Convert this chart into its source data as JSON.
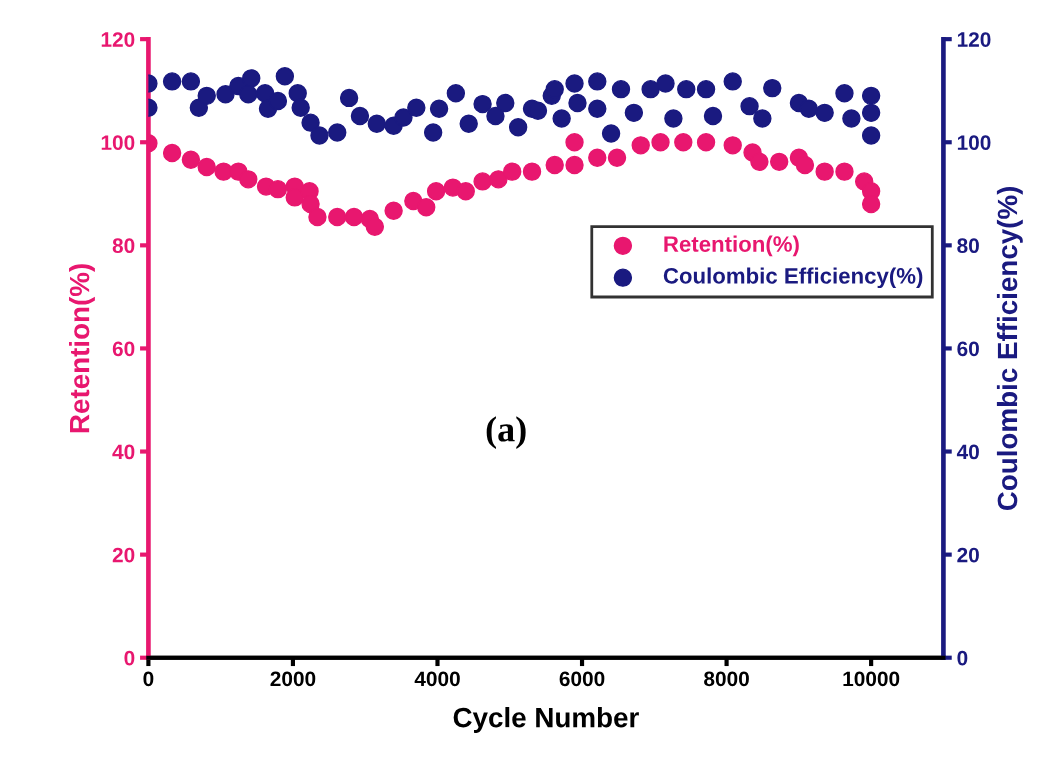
{
  "chart_data": {
    "type": "scatter",
    "xlabel": "Cycle Number",
    "ylabel": "Retention(%)",
    "y2label": "Coulombic Efficiency(%)",
    "annotations": [
      "(a)"
    ],
    "xlim": [
      0,
      11000
    ],
    "xticks": [
      0,
      2000,
      4000,
      6000,
      8000,
      10000
    ],
    "ylim": [
      0,
      120
    ],
    "yticks": [
      0,
      20,
      40,
      60,
      80,
      100,
      120
    ],
    "y2lim": [
      0,
      120
    ],
    "y2ticks": [
      0,
      20,
      40,
      60,
      80,
      100,
      120
    ],
    "grid": false,
    "legend": "center right",
    "marker": "circle",
    "series": [
      {
        "name": "Retention(%)",
        "color": "#e8176f",
        "x": [
          0,
          328,
          588,
          807,
          1040,
          1245,
          1382,
          1628,
          1792,
          2025,
          2025,
          2230,
          2244,
          2339,
          2613,
          2845,
          3064,
          3133,
          3393,
          3666,
          3844,
          3981,
          4213,
          4391,
          4624,
          4843,
          5034,
          5308,
          5622,
          5896,
          5896,
          6211,
          6484,
          6812,
          7086,
          7401,
          7716,
          8085,
          8359,
          8454,
          8728,
          9001,
          9084,
          9357,
          9631,
          9904,
          10000,
          10000
        ],
        "values": [
          99.8,
          97.9,
          96.6,
          95.2,
          94.3,
          94.3,
          92.8,
          91.4,
          90.9,
          91.4,
          89.3,
          90.5,
          88,
          85.5,
          85.5,
          85.5,
          85.1,
          83.6,
          86.7,
          88.6,
          87.4,
          90.5,
          91.2,
          90.5,
          92.4,
          92.8,
          94.3,
          94.3,
          95.6,
          100,
          95.6,
          97,
          97,
          99.4,
          100,
          100,
          100,
          99.4,
          98,
          96.2,
          96.2,
          97,
          95.6,
          94.3,
          94.3,
          92.4,
          90.5,
          88
        ]
      },
      {
        "name": "Coulombic Efficiency(%)",
        "color": "#1a1a80",
        "axis": "y2",
        "x": [
          0,
          0,
          328,
          588,
          698,
          807,
          1067,
          1245,
          1423,
          1382,
          1614,
          1655,
          1888,
          1792,
          2066,
          2107,
          2244,
          2367,
          2613,
          2777,
          2927,
          3160,
          3393,
          3529,
          3707,
          3940,
          4022,
          4254,
          4432,
          4624,
          4802,
          4938,
          5116,
          5308,
          5581,
          5390,
          5622,
          5718,
          5896,
          5937,
          6211,
          6211,
          6402,
          6539,
          6717,
          6949,
          7155,
          7264,
          7442,
          7716,
          7812,
          8085,
          8318,
          8495,
          8632,
          9001,
          9138,
          9357,
          9631,
          9727,
          10000,
          10000,
          10000
        ],
        "values": [
          111.4,
          106.7,
          111.8,
          111.8,
          106.7,
          109,
          109.3,
          110.9,
          112.4,
          109.3,
          109.5,
          106.5,
          112.8,
          108,
          109.5,
          106.7,
          103.8,
          101.3,
          101.9,
          108.6,
          105.1,
          103.6,
          103.2,
          104.8,
          106.7,
          101.9,
          106.5,
          109.5,
          103.6,
          107.4,
          105.1,
          107.6,
          102.9,
          106.5,
          109,
          106.1,
          110.3,
          104.6,
          111.4,
          107.6,
          111.8,
          106.5,
          101.7,
          110.3,
          105.7,
          110.3,
          111.4,
          104.6,
          110.3,
          110.3,
          105.1,
          111.8,
          107,
          104.6,
          110.5,
          107.6,
          106.5,
          105.7,
          109.5,
          104.6,
          105.7,
          109,
          101.3
        ]
      }
    ]
  }
}
